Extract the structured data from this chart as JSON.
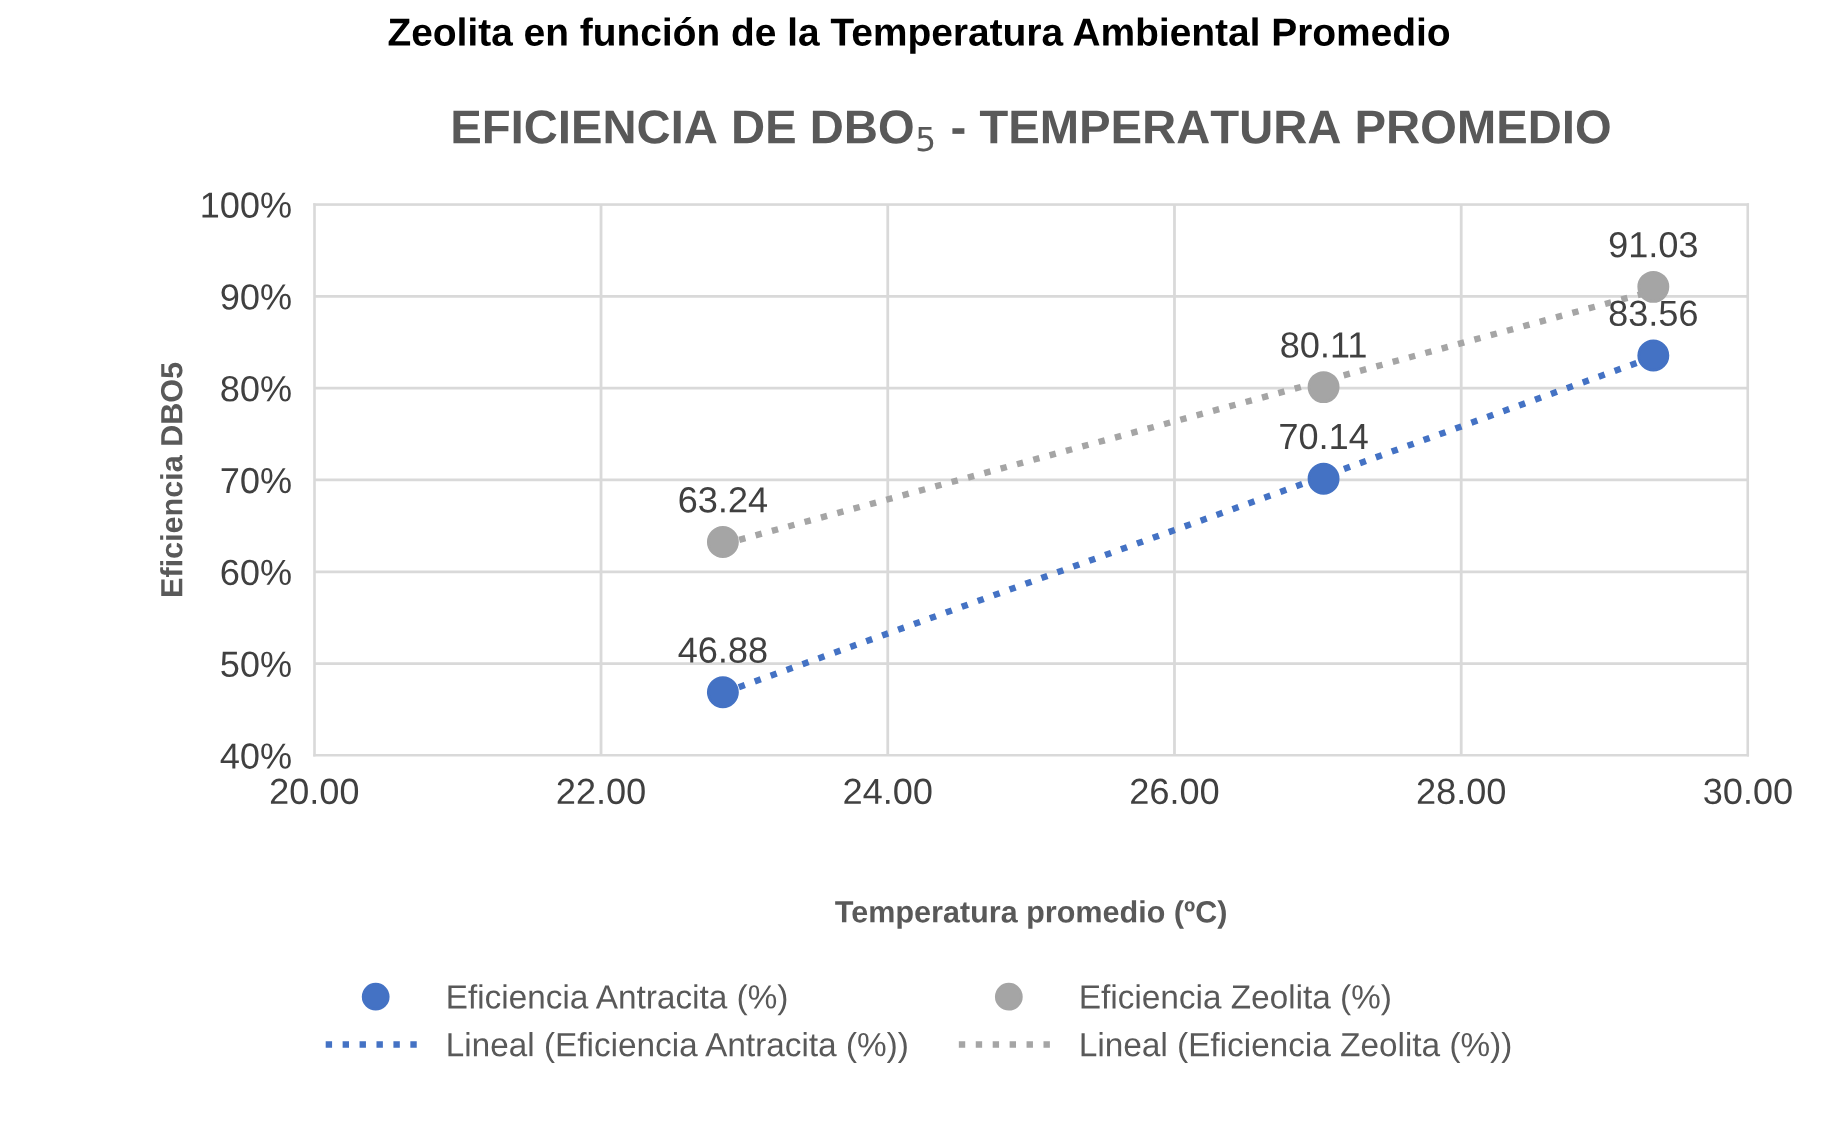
{
  "chart_data": {
    "type": "scatter",
    "title": "EFICIENCIA DE DBO$_{5}$ - TEMPERATURA PROMEDIO",
    "xlabel": "Temperatura promedio (ºC)",
    "ylabel": "Eficiencia DBO5",
    "annotations": [
      "Zeolita en función de la Temperatura Ambiental Promedio"
    ],
    "x": [
      22.85,
      27.04,
      29.34
    ],
    "series": [
      {
        "name": "Eficiencia Antracita (%)",
        "color": "#4472c4",
        "values": [
          46.88,
          70.14,
          83.56
        ],
        "marker": "circle",
        "data_labels": true
      },
      {
        "name": "Eficiencia Zeolita (%)",
        "color": "#a5a5a5",
        "values": [
          63.24,
          80.11,
          91.03
        ],
        "marker": "circle",
        "data_labels": true
      },
      {
        "name": "Lineal (Eficiencia Antracita (%))",
        "type": "line",
        "color": "#4472c4",
        "values": [
          46.8,
          70.4,
          83.4
        ],
        "line_style": "dotted",
        "marker": "none"
      },
      {
        "name": "Lineal (Eficiencia Zeolita (%))",
        "type": "line",
        "color": "#a5a5a5",
        "values": [
          63.0,
          80.8,
          90.6
        ],
        "line_style": "dotted",
        "marker": "none"
      }
    ],
    "xlim": [
      20,
      30
    ],
    "xticks": [
      {
        "value": 20,
        "label": "20.00"
      },
      {
        "value": 22,
        "label": "22.00"
      },
      {
        "value": 24,
        "label": "24.00"
      },
      {
        "value": 26,
        "label": "26.00"
      },
      {
        "value": 28,
        "label": "28.00"
      },
      {
        "value": 30,
        "label": "30.00"
      }
    ],
    "ylim": [
      40,
      100
    ],
    "yticks": [
      {
        "value": 40,
        "label": "40%"
      },
      {
        "value": 50,
        "label": "50%"
      },
      {
        "value": 60,
        "label": "60%"
      },
      {
        "value": 70,
        "label": "70%"
      },
      {
        "value": 80,
        "label": "80%"
      },
      {
        "value": 90,
        "label": "90%"
      },
      {
        "value": 100,
        "label": "100%"
      }
    ],
    "grid": true,
    "legend": "bottom"
  }
}
